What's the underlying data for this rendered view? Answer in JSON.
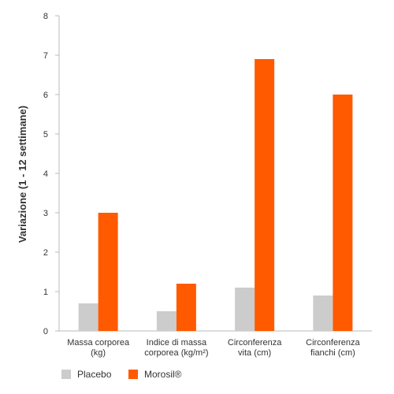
{
  "chart_data": {
    "type": "bar",
    "ylabel": "Variazione (1 - 12 settimane)",
    "ylim": [
      0,
      8
    ],
    "yticks": [
      "0",
      "1",
      "2",
      "3",
      "4",
      "5",
      "6",
      "7",
      "8"
    ],
    "categories": [
      [
        "Massa corporea",
        "(kg)"
      ],
      [
        "Indice di massa",
        "corporea (kg/m²)"
      ],
      [
        "Circonferenza",
        "vita (cm)"
      ],
      [
        "Circonferenza",
        "fianchi (cm)"
      ]
    ],
    "series": [
      {
        "name": "Placebo",
        "color": "#cccccc",
        "values": [
          0.7,
          0.5,
          1.1,
          0.9
        ]
      },
      {
        "name": "Morosil®",
        "color": "#ff5a00",
        "values": [
          3.0,
          1.2,
          6.9,
          6.0
        ]
      }
    ],
    "legend": "bottom-left",
    "axis_color": "#bbbbbb",
    "text_color": "#333333"
  }
}
